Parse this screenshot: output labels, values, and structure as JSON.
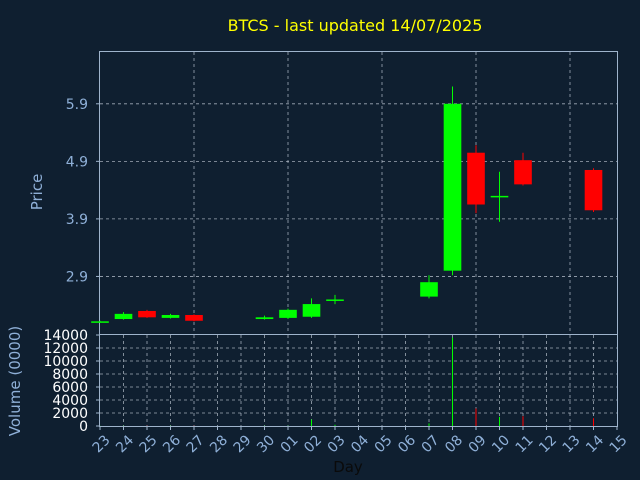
{
  "chart_data": {
    "type": "candlestick",
    "title": "BTCS - last updated 14/07/2025",
    "price_axis": {
      "label": "Price",
      "ticks": [
        "5.9",
        "4.9",
        "3.9",
        "2.9"
      ],
      "tick_values": [
        5.9,
        4.9,
        3.9,
        2.9
      ],
      "ylim": [
        1.9,
        6.8
      ]
    },
    "volume_axis": {
      "label": "Volume (0000)",
      "ticks": [
        "14000",
        "12000",
        "10000",
        "8000",
        "6000",
        "4000",
        "2000",
        "0"
      ],
      "tick_values": [
        14000,
        12000,
        10000,
        8000,
        6000,
        4000,
        2000,
        0
      ],
      "ylim": [
        0,
        14000
      ]
    },
    "x_axis": {
      "label": "Day",
      "ticks": [
        "23",
        "24",
        "25",
        "26",
        "27",
        "28",
        "29",
        "30",
        "01",
        "02",
        "03",
        "04",
        "05",
        "06",
        "07",
        "08",
        "09",
        "10",
        "11",
        "12",
        "13",
        "14",
        "15"
      ]
    },
    "grid": true,
    "colors": {
      "up": "#00ff00",
      "down": "#ff0000",
      "background": "#0f1f30"
    },
    "candles": [
      {
        "day": "23",
        "open": 2.12,
        "close": 2.12,
        "high": 2.13,
        "low": 2.11
      },
      {
        "day": "24",
        "open": 2.16,
        "close": 2.25,
        "high": 2.28,
        "low": 2.15
      },
      {
        "day": "25",
        "open": 2.3,
        "close": 2.19,
        "high": 2.32,
        "low": 2.18
      },
      {
        "day": "26",
        "open": 2.18,
        "close": 2.23,
        "high": 2.25,
        "low": 2.17
      },
      {
        "day": "27",
        "open": 2.23,
        "close": 2.13,
        "high": 2.24,
        "low": 2.12
      },
      {
        "day": "30",
        "open": 2.16,
        "close": 2.19,
        "high": 2.22,
        "low": 2.15
      },
      {
        "day": "01",
        "open": 2.18,
        "close": 2.32,
        "high": 2.34,
        "low": 2.16
      },
      {
        "day": "02",
        "open": 2.2,
        "close": 2.42,
        "high": 2.52,
        "low": 2.18
      },
      {
        "day": "03",
        "open": 2.5,
        "close": 2.5,
        "high": 2.58,
        "low": 2.42
      },
      {
        "day": "07",
        "open": 2.55,
        "close": 2.8,
        "high": 2.92,
        "low": 2.52
      },
      {
        "day": "08",
        "open": 3.0,
        "close": 5.9,
        "high": 6.2,
        "low": 2.92
      },
      {
        "day": "09",
        "open": 5.05,
        "close": 4.15,
        "high": 5.18,
        "low": 4.0
      },
      {
        "day": "10",
        "open": 4.3,
        "close": 4.3,
        "high": 4.72,
        "low": 3.85
      },
      {
        "day": "11",
        "open": 4.92,
        "close": 4.5,
        "high": 5.05,
        "low": 4.48
      },
      {
        "day": "14",
        "open": 4.75,
        "close": 4.05,
        "high": 4.78,
        "low": 4.02
      }
    ],
    "volume": [
      {
        "day": "23",
        "value": 30
      },
      {
        "day": "24",
        "value": 40
      },
      {
        "day": "25",
        "value": 40
      },
      {
        "day": "26",
        "value": 30
      },
      {
        "day": "27",
        "value": 30
      },
      {
        "day": "30",
        "value": 30
      },
      {
        "day": "01",
        "value": 40
      },
      {
        "day": "02",
        "value": 1000
      },
      {
        "day": "03",
        "value": 200
      },
      {
        "day": "07",
        "value": 400
      },
      {
        "day": "08",
        "value": 13600
      },
      {
        "day": "09",
        "value": 2700
      },
      {
        "day": "10",
        "value": 1400
      },
      {
        "day": "11",
        "value": 1500
      },
      {
        "day": "14",
        "value": 1200
      }
    ]
  }
}
